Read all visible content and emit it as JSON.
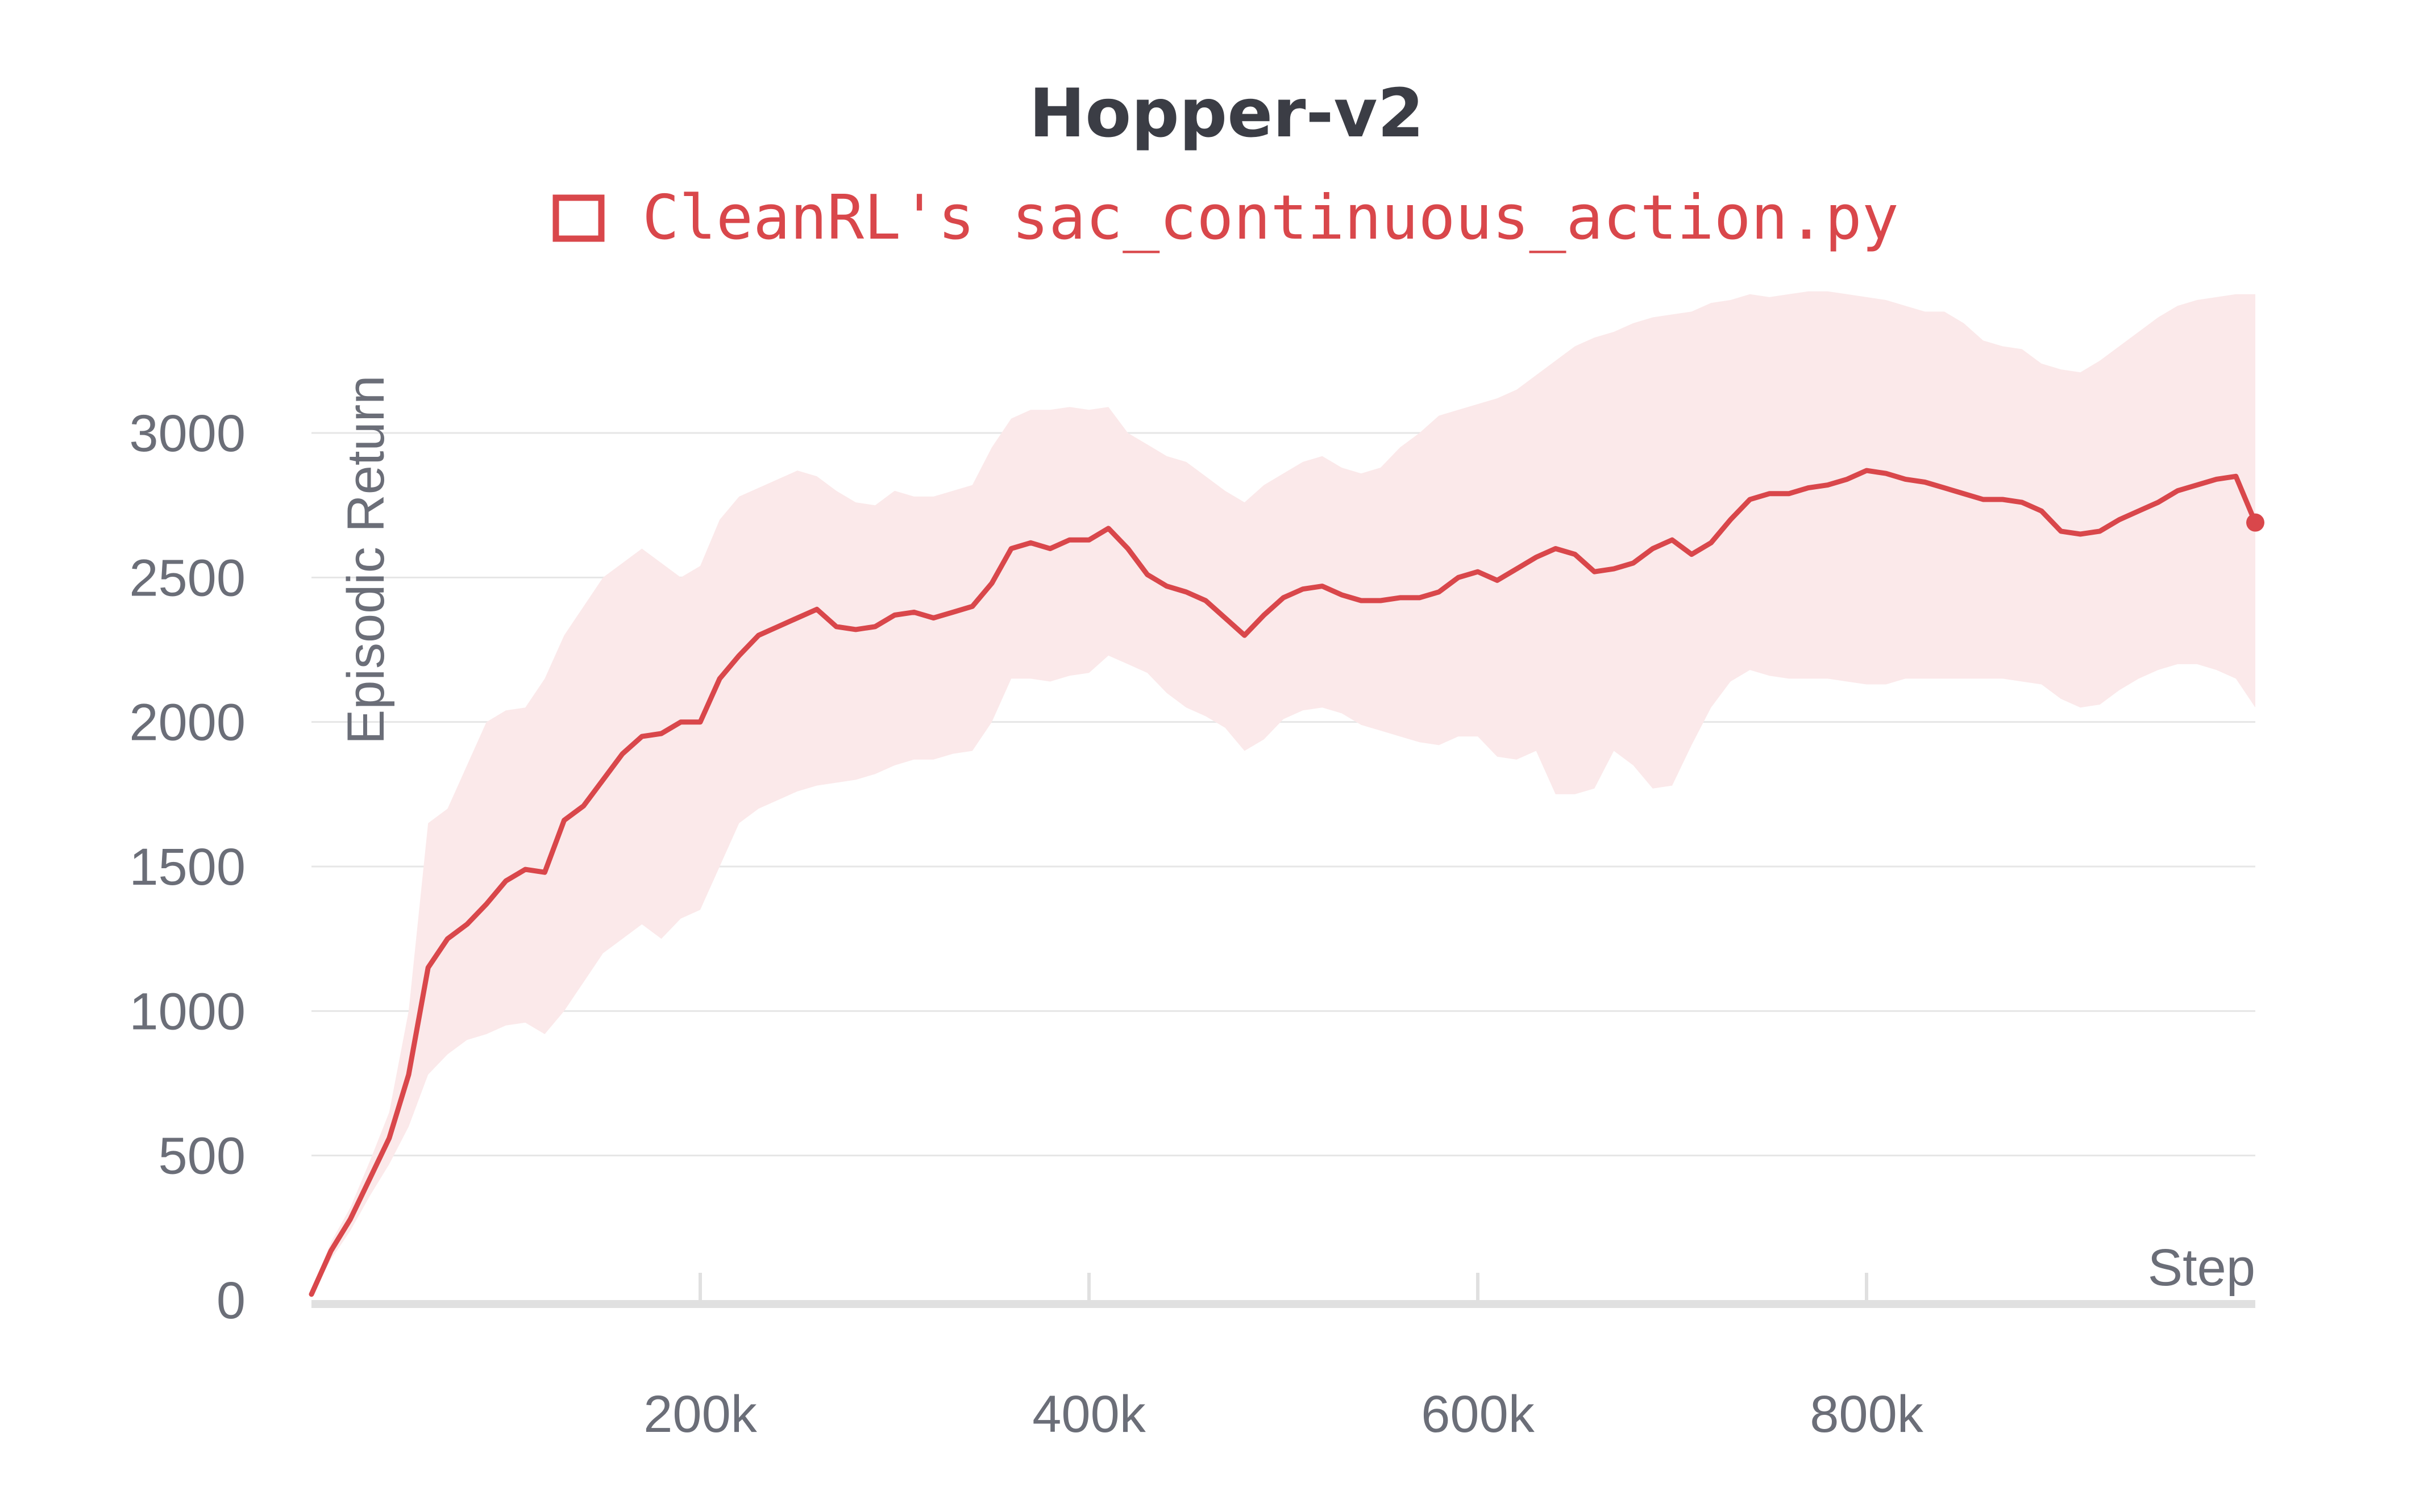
{
  "chart_data": {
    "type": "line",
    "title": "Hopper-v2",
    "xlabel": "Step",
    "ylabel": "Episodic Return",
    "xlim": [
      0,
      1000000
    ],
    "ylim": [
      0,
      3300
    ],
    "grid": true,
    "legend_position": "top-center",
    "x_tick_values": [
      200000,
      400000,
      600000,
      800000
    ],
    "x_tick_labels": [
      "200k",
      "400k",
      "600k",
      "800k"
    ],
    "y_tick_values": [
      0,
      500,
      1000,
      1500,
      2000,
      2500,
      3000
    ],
    "y_tick_labels": [
      "0",
      "500",
      "1000",
      "1500",
      "2000",
      "2500",
      "3000"
    ],
    "colors": {
      "series": "#d9474b",
      "band": "#fbe9ea",
      "grid": "#e6e6e6",
      "axis": "#e0e0e0",
      "title": "#3b3d45",
      "tick": "#6b6e78"
    },
    "series": [
      {
        "name": "CleanRL's sac_continuous_action.py",
        "x": [
          0,
          10000,
          20000,
          30000,
          40000,
          50000,
          60000,
          70000,
          80000,
          90000,
          100000,
          110000,
          120000,
          130000,
          140000,
          150000,
          160000,
          170000,
          180000,
          190000,
          200000,
          210000,
          220000,
          230000,
          240000,
          250000,
          260000,
          270000,
          280000,
          290000,
          300000,
          310000,
          320000,
          330000,
          340000,
          350000,
          360000,
          370000,
          380000,
          390000,
          400000,
          410000,
          420000,
          430000,
          440000,
          450000,
          460000,
          470000,
          480000,
          490000,
          500000,
          510000,
          520000,
          530000,
          540000,
          550000,
          560000,
          570000,
          580000,
          590000,
          600000,
          610000,
          620000,
          630000,
          640000,
          650000,
          660000,
          670000,
          680000,
          690000,
          700000,
          710000,
          720000,
          730000,
          740000,
          750000,
          760000,
          770000,
          780000,
          790000,
          800000,
          810000,
          820000,
          830000,
          840000,
          850000,
          860000,
          870000,
          880000,
          890000,
          900000,
          910000,
          920000,
          930000,
          940000,
          950000,
          960000,
          970000,
          980000,
          990000,
          1000000
        ],
        "y": [
          20,
          170,
          280,
          420,
          560,
          780,
          1150,
          1250,
          1300,
          1370,
          1450,
          1490,
          1480,
          1660,
          1710,
          1800,
          1890,
          1950,
          1960,
          2000,
          2000,
          2150,
          2230,
          2300,
          2330,
          2360,
          2390,
          2330,
          2320,
          2330,
          2370,
          2380,
          2360,
          2380,
          2400,
          2480,
          2600,
          2620,
          2600,
          2630,
          2630,
          2670,
          2600,
          2510,
          2470,
          2450,
          2420,
          2360,
          2300,
          2370,
          2430,
          2460,
          2470,
          2440,
          2420,
          2420,
          2430,
          2430,
          2450,
          2500,
          2520,
          2490,
          2530,
          2570,
          2600,
          2580,
          2520,
          2530,
          2550,
          2600,
          2630,
          2580,
          2620,
          2700,
          2770,
          2790,
          2790,
          2810,
          2820,
          2840,
          2870,
          2860,
          2840,
          2830,
          2810,
          2790,
          2770,
          2770,
          2760,
          2730,
          2660,
          2650,
          2660,
          2700,
          2730,
          2760,
          2800,
          2820,
          2840,
          2850,
          2690
        ],
        "y_upper": [
          30,
          200,
          320,
          480,
          650,
          1000,
          1650,
          1700,
          1850,
          2000,
          2040,
          2050,
          2150,
          2300,
          2400,
          2500,
          2550,
          2600,
          2550,
          2500,
          2540,
          2700,
          2780,
          2810,
          2840,
          2870,
          2850,
          2800,
          2760,
          2750,
          2800,
          2780,
          2780,
          2800,
          2820,
          2950,
          3050,
          3080,
          3080,
          3090,
          3080,
          3090,
          3000,
          2960,
          2920,
          2900,
          2850,
          2800,
          2760,
          2820,
          2860,
          2900,
          2920,
          2880,
          2860,
          2880,
          2950,
          3000,
          3060,
          3080,
          3100,
          3120,
          3150,
          3200,
          3250,
          3300,
          3330,
          3350,
          3380,
          3400,
          3410,
          3420,
          3450,
          3460,
          3480,
          3470,
          3480,
          3490,
          3490,
          3480,
          3470,
          3460,
          3440,
          3420,
          3420,
          3380,
          3320,
          3300,
          3290,
          3240,
          3220,
          3210,
          3250,
          3300,
          3350,
          3400,
          3440,
          3460,
          3470,
          3480,
          3480
        ],
        "y_lower": [
          15,
          140,
          240,
          360,
          470,
          600,
          780,
          850,
          900,
          920,
          950,
          960,
          920,
          1000,
          1100,
          1200,
          1250,
          1300,
          1250,
          1320,
          1350,
          1500,
          1650,
          1700,
          1730,
          1760,
          1780,
          1790,
          1800,
          1820,
          1850,
          1870,
          1870,
          1890,
          1900,
          2000,
          2150,
          2150,
          2140,
          2160,
          2170,
          2230,
          2200,
          2170,
          2100,
          2050,
          2020,
          1980,
          1900,
          1940,
          2010,
          2040,
          2050,
          2030,
          1990,
          1970,
          1950,
          1930,
          1920,
          1950,
          1950,
          1880,
          1870,
          1900,
          1750,
          1750,
          1770,
          1900,
          1850,
          1770,
          1780,
          1920,
          2050,
          2140,
          2180,
          2160,
          2150,
          2150,
          2150,
          2140,
          2130,
          2130,
          2150,
          2150,
          2150,
          2150,
          2150,
          2150,
          2140,
          2130,
          2080,
          2050,
          2060,
          2110,
          2150,
          2180,
          2200,
          2200,
          2180,
          2150,
          2050
        ]
      }
    ]
  }
}
